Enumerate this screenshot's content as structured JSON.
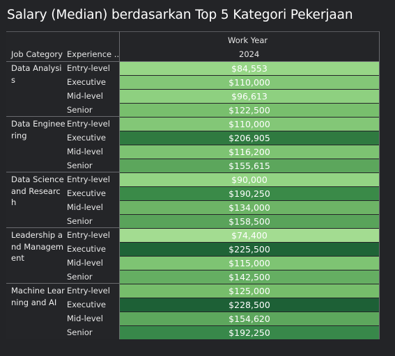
{
  "title": "Salary (Median) berdasarkan Top 5 Kategori Pekerjaan",
  "header": {
    "col1": "Job Category",
    "col2": "Experience ..",
    "top_group": "Work Year",
    "year": "2024"
  },
  "groups": [
    {
      "category": "Data Analysis",
      "rows": [
        {
          "level": "Entry-level",
          "value": "$84,553",
          "color": "#97d687"
        },
        {
          "level": "Executive",
          "value": "$110,000",
          "color": "#83c777"
        },
        {
          "level": "Mid-level",
          "value": "$96,613",
          "color": "#8ed080"
        },
        {
          "level": "Senior",
          "value": "$122,500",
          "color": "#78bf6d"
        }
      ]
    },
    {
      "category": "Data Engineering",
      "rows": [
        {
          "level": "Entry-level",
          "value": "$110,000",
          "color": "#83c777"
        },
        {
          "level": "Executive",
          "value": "$206,905",
          "color": "#2f7a40"
        },
        {
          "level": "Mid-level",
          "value": "$116,200",
          "color": "#7dc372"
        },
        {
          "level": "Senior",
          "value": "$155,615",
          "color": "#5ca65c"
        }
      ]
    },
    {
      "category": "Data Science and Research",
      "rows": [
        {
          "level": "Entry-level",
          "value": "$90,000",
          "color": "#93d484"
        },
        {
          "level": "Executive",
          "value": "$190,250",
          "color": "#3a8a48"
        },
        {
          "level": "Mid-level",
          "value": "$134,000",
          "color": "#6db466"
        },
        {
          "level": "Senior",
          "value": "$158,500",
          "color": "#59a35a"
        }
      ]
    },
    {
      "category": "Leadership and Management",
      "rows": [
        {
          "level": "Entry-level",
          "value": "$74,400",
          "color": "#a3dc91"
        },
        {
          "level": "Executive",
          "value": "$225,500",
          "color": "#1f6437"
        },
        {
          "level": "Mid-level",
          "value": "$115,000",
          "color": "#7ec473"
        },
        {
          "level": "Senior",
          "value": "$142,500",
          "color": "#65ae62"
        }
      ]
    },
    {
      "category": "Machine Learning and AI",
      "rows": [
        {
          "level": "Entry-level",
          "value": "$125,000",
          "color": "#76bd6b"
        },
        {
          "level": "Executive",
          "value": "$228,500",
          "color": "#1d6036"
        },
        {
          "level": "Mid-level",
          "value": "$154,620",
          "color": "#5da75d"
        },
        {
          "level": "Senior",
          "value": "$192,250",
          "color": "#38884a"
        }
      ]
    }
  ]
}
